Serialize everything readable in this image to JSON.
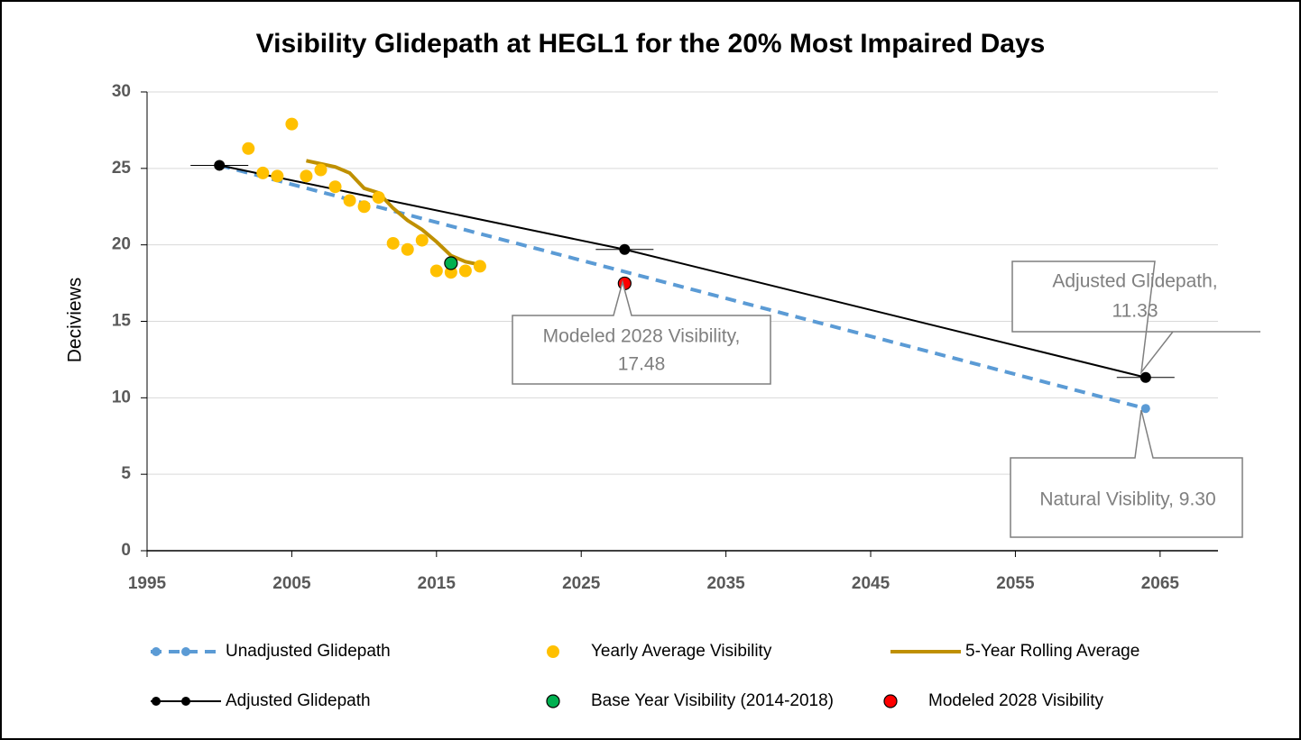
{
  "chart_data": {
    "type": "line",
    "title": "Visibility Glidepath at HEGL1 for the 20% Most Impaired Days",
    "y_label": "Deciviews",
    "xlim": [
      1995,
      2069
    ],
    "xticks": [
      1995,
      2005,
      2015,
      2025,
      2035,
      2045,
      2055,
      2065
    ],
    "ylim": [
      0,
      30
    ],
    "yticks": [
      0,
      5,
      10,
      15,
      20,
      25,
      30
    ],
    "grid": true,
    "legend": "bottom",
    "series": [
      {
        "name": "Unadjusted Glidepath",
        "color": "#5b9bd5",
        "style": "dashed-line-markers",
        "x": [
          2000,
          2064
        ],
        "values": [
          25.2,
          9.3
        ]
      },
      {
        "name": "Yearly Average Visibility",
        "color": "#ffc000",
        "style": "markers",
        "x": [
          2002,
          2003,
          2004,
          2005,
          2006,
          2007,
          2008,
          2009,
          2010,
          2011,
          2012,
          2013,
          2014,
          2015,
          2016,
          2017,
          2018
        ],
        "values": [
          26.3,
          24.7,
          24.5,
          27.9,
          24.5,
          24.9,
          23.8,
          22.9,
          22.5,
          23.1,
          20.1,
          19.7,
          20.3,
          18.3,
          18.2,
          18.3,
          18.6
        ]
      },
      {
        "name": "5-Year Rolling Average",
        "color": "#bf9000",
        "style": "line",
        "x": [
          2006,
          2007,
          2008,
          2009,
          2010,
          2011,
          2012,
          2013,
          2014,
          2015,
          2016,
          2017,
          2018
        ],
        "values": [
          25.5,
          25.3,
          25.1,
          24.7,
          23.7,
          23.4,
          22.4,
          21.6,
          21.0,
          20.2,
          19.3,
          18.9,
          18.7
        ]
      },
      {
        "name": "Adjusted Glidepath",
        "color": "#000000",
        "style": "line-markers",
        "x": [
          2000,
          2028,
          2064
        ],
        "values": [
          25.2,
          19.7,
          11.33
        ]
      },
      {
        "name": "Base Year Visibility (2014-2018)",
        "color": "#00b050",
        "style": "markers",
        "x": [
          2016
        ],
        "values": [
          18.8
        ]
      },
      {
        "name": "Modeled 2028 Visibility",
        "color": "#ff0000",
        "style": "markers",
        "x": [
          2028
        ],
        "values": [
          17.48
        ]
      }
    ],
    "annotations": [
      {
        "lines": [
          "Modeled 2028 Visibility,",
          "17.48"
        ]
      },
      {
        "lines": [
          "Adjusted Glidepath,",
          "11.33"
        ]
      },
      {
        "lines": [
          "Natural Visiblity, 9.30"
        ]
      }
    ]
  }
}
